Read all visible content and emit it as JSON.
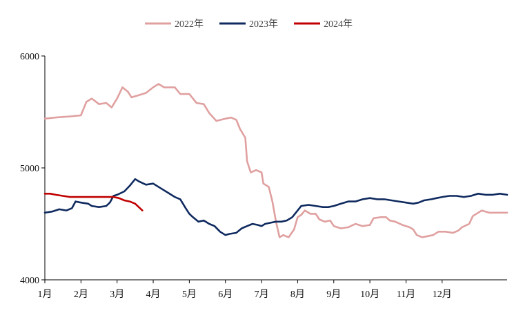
{
  "chart_data": {
    "type": "line",
    "title": "",
    "xlabel": "",
    "ylabel": "",
    "ylim": [
      4000,
      6000
    ],
    "yticks": [
      "4000",
      "5000",
      "6000"
    ],
    "x_tick_labels": [
      "1月",
      "2月",
      "3月",
      "4月",
      "5月",
      "6月",
      "7月",
      "8月",
      "9月",
      "10月",
      "11月",
      "12月"
    ],
    "legend_position": "top-center",
    "grid": false,
    "series": [
      {
        "name": "2022年",
        "color": "#e0a0a0",
        "points": [
          [
            0,
            5440
          ],
          [
            0.3,
            5450
          ],
          [
            0.7,
            5460
          ],
          [
            1.0,
            5470
          ],
          [
            1.15,
            5590
          ],
          [
            1.3,
            5620
          ],
          [
            1.5,
            5570
          ],
          [
            1.7,
            5580
          ],
          [
            1.85,
            5540
          ],
          [
            2.0,
            5620
          ],
          [
            2.15,
            5720
          ],
          [
            2.3,
            5680
          ],
          [
            2.4,
            5630
          ],
          [
            2.6,
            5650
          ],
          [
            2.8,
            5670
          ],
          [
            3.0,
            5720
          ],
          [
            3.15,
            5750
          ],
          [
            3.3,
            5720
          ],
          [
            3.6,
            5720
          ],
          [
            3.75,
            5660
          ],
          [
            4.0,
            5660
          ],
          [
            4.2,
            5580
          ],
          [
            4.4,
            5570
          ],
          [
            4.55,
            5490
          ],
          [
            4.75,
            5420
          ],
          [
            5.0,
            5440
          ],
          [
            5.15,
            5450
          ],
          [
            5.3,
            5430
          ],
          [
            5.4,
            5350
          ],
          [
            5.55,
            5270
          ],
          [
            5.6,
            5060
          ],
          [
            5.7,
            4960
          ],
          [
            5.85,
            4980
          ],
          [
            6.0,
            4960
          ],
          [
            6.05,
            4860
          ],
          [
            6.2,
            4830
          ],
          [
            6.3,
            4700
          ],
          [
            6.4,
            4520
          ],
          [
            6.5,
            4380
          ],
          [
            6.6,
            4400
          ],
          [
            6.75,
            4380
          ],
          [
            6.9,
            4450
          ],
          [
            7.0,
            4560
          ],
          [
            7.1,
            4580
          ],
          [
            7.2,
            4620
          ],
          [
            7.35,
            4590
          ],
          [
            7.5,
            4590
          ],
          [
            7.6,
            4540
          ],
          [
            7.75,
            4520
          ],
          [
            7.9,
            4530
          ],
          [
            8.0,
            4480
          ],
          [
            8.2,
            4460
          ],
          [
            8.4,
            4470
          ],
          [
            8.6,
            4500
          ],
          [
            8.8,
            4480
          ],
          [
            9.0,
            4490
          ],
          [
            9.1,
            4550
          ],
          [
            9.3,
            4560
          ],
          [
            9.45,
            4560
          ],
          [
            9.55,
            4530
          ],
          [
            9.7,
            4520
          ],
          [
            9.9,
            4490
          ],
          [
            10.1,
            4470
          ],
          [
            10.2,
            4450
          ],
          [
            10.3,
            4400
          ],
          [
            10.45,
            4380
          ],
          [
            10.6,
            4390
          ],
          [
            10.75,
            4400
          ],
          [
            10.9,
            4430
          ],
          [
            11.1,
            4430
          ],
          [
            11.3,
            4420
          ],
          [
            11.45,
            4440
          ],
          [
            11.55,
            4470
          ],
          [
            11.75,
            4500
          ],
          [
            11.85,
            4570
          ],
          [
            12.0,
            4600
          ],
          [
            12.1,
            4620
          ],
          [
            12.3,
            4600
          ],
          [
            12.6,
            4600
          ],
          [
            12.8,
            4600
          ]
        ]
      },
      {
        "name": "2023年",
        "color": "#0f2a5f",
        "points": [
          [
            0,
            4600
          ],
          [
            0.2,
            4610
          ],
          [
            0.4,
            4630
          ],
          [
            0.6,
            4620
          ],
          [
            0.75,
            4640
          ],
          [
            0.85,
            4700
          ],
          [
            1.0,
            4690
          ],
          [
            1.2,
            4680
          ],
          [
            1.3,
            4660
          ],
          [
            1.5,
            4650
          ],
          [
            1.7,
            4660
          ],
          [
            1.8,
            4690
          ],
          [
            1.9,
            4750
          ],
          [
            2.0,
            4760
          ],
          [
            2.2,
            4790
          ],
          [
            2.35,
            4840
          ],
          [
            2.5,
            4900
          ],
          [
            2.6,
            4880
          ],
          [
            2.8,
            4850
          ],
          [
            3.0,
            4860
          ],
          [
            3.2,
            4820
          ],
          [
            3.4,
            4780
          ],
          [
            3.6,
            4740
          ],
          [
            3.75,
            4720
          ],
          [
            3.9,
            4640
          ],
          [
            4.0,
            4590
          ],
          [
            4.1,
            4560
          ],
          [
            4.25,
            4520
          ],
          [
            4.4,
            4530
          ],
          [
            4.55,
            4500
          ],
          [
            4.7,
            4480
          ],
          [
            4.85,
            4430
          ],
          [
            5.0,
            4400
          ],
          [
            5.1,
            4410
          ],
          [
            5.3,
            4420
          ],
          [
            5.45,
            4460
          ],
          [
            5.6,
            4480
          ],
          [
            5.75,
            4500
          ],
          [
            5.9,
            4490
          ],
          [
            6.0,
            4480
          ],
          [
            6.1,
            4500
          ],
          [
            6.25,
            4510
          ],
          [
            6.4,
            4520
          ],
          [
            6.55,
            4520
          ],
          [
            6.7,
            4530
          ],
          [
            6.85,
            4560
          ],
          [
            7.0,
            4620
          ],
          [
            7.1,
            4660
          ],
          [
            7.3,
            4670
          ],
          [
            7.5,
            4660
          ],
          [
            7.7,
            4650
          ],
          [
            7.85,
            4650
          ],
          [
            8.0,
            4660
          ],
          [
            8.2,
            4680
          ],
          [
            8.4,
            4700
          ],
          [
            8.6,
            4700
          ],
          [
            8.8,
            4720
          ],
          [
            9.0,
            4730
          ],
          [
            9.2,
            4720
          ],
          [
            9.4,
            4720
          ],
          [
            9.6,
            4710
          ],
          [
            9.8,
            4700
          ],
          [
            10.0,
            4690
          ],
          [
            10.2,
            4680
          ],
          [
            10.35,
            4690
          ],
          [
            10.5,
            4710
          ],
          [
            10.7,
            4720
          ],
          [
            10.85,
            4730
          ],
          [
            11.0,
            4740
          ],
          [
            11.2,
            4750
          ],
          [
            11.4,
            4750
          ],
          [
            11.6,
            4740
          ],
          [
            11.8,
            4750
          ],
          [
            12.0,
            4770
          ],
          [
            12.2,
            4760
          ],
          [
            12.4,
            4760
          ],
          [
            12.6,
            4770
          ],
          [
            12.8,
            4760
          ]
        ]
      },
      {
        "name": "2024年",
        "color": "#c00000",
        "points": [
          [
            0,
            4770
          ],
          [
            0.15,
            4770
          ],
          [
            0.3,
            4760
          ],
          [
            0.5,
            4750
          ],
          [
            0.7,
            4740
          ],
          [
            0.9,
            4740
          ],
          [
            1.1,
            4740
          ],
          [
            1.3,
            4740
          ],
          [
            1.5,
            4740
          ],
          [
            1.7,
            4740
          ],
          [
            1.9,
            4740
          ],
          [
            2.05,
            4730
          ],
          [
            2.2,
            4710
          ],
          [
            2.35,
            4700
          ],
          [
            2.5,
            4680
          ],
          [
            2.6,
            4650
          ],
          [
            2.7,
            4620
          ]
        ]
      }
    ]
  }
}
